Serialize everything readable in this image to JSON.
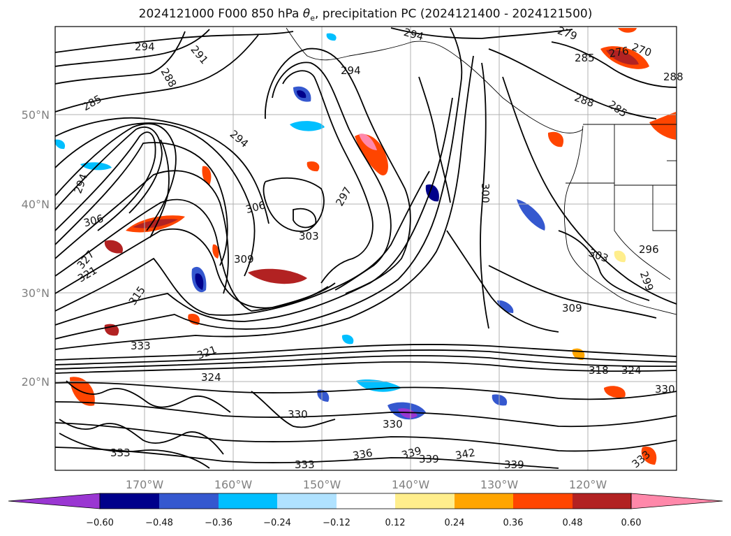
{
  "title": {
    "prefix": "2024121000 F000 850 hPa ",
    "theta": "θ",
    "sub": "e",
    "suffix": ", precipitation PC (2024121400 - 2024121500)"
  },
  "axes": {
    "lat_ticks": [
      "50°N",
      "40°N",
      "30°N",
      "20°N"
    ],
    "lon_ticks": [
      "170°W",
      "160°W",
      "150°W",
      "140°W",
      "130°W",
      "120°W"
    ]
  },
  "contour_labels": [
    "294",
    "291",
    "288",
    "285",
    "294",
    "294",
    "294",
    "279",
    "285",
    "276",
    "270",
    "288",
    "288",
    "285",
    "294",
    "306",
    "300",
    "297",
    "303",
    "306",
    "309",
    "309",
    "303",
    "296",
    "299",
    "327",
    "321",
    "315",
    "333",
    "321",
    "324",
    "333",
    "330",
    "330",
    "336",
    "339",
    "339",
    "342",
    "339",
    "333",
    "318",
    "324",
    "330",
    "333"
  ],
  "colorbar": {
    "colors": [
      "#9a36d2",
      "#00008b",
      "#3558cf",
      "#00bfff",
      "#b0e2ff",
      "#ffffff",
      "#ffee8c",
      "#ffa500",
      "#ff4500",
      "#b22222",
      "#ff88aa"
    ],
    "ticks": [
      "−0.60",
      "−0.48",
      "−0.36",
      "−0.24",
      "−0.12",
      "0.12",
      "0.24",
      "0.36",
      "0.48",
      "0.60"
    ]
  },
  "colors": {
    "contour": "#000000",
    "frame": "#000000",
    "grid": "#b0b0b0"
  }
}
